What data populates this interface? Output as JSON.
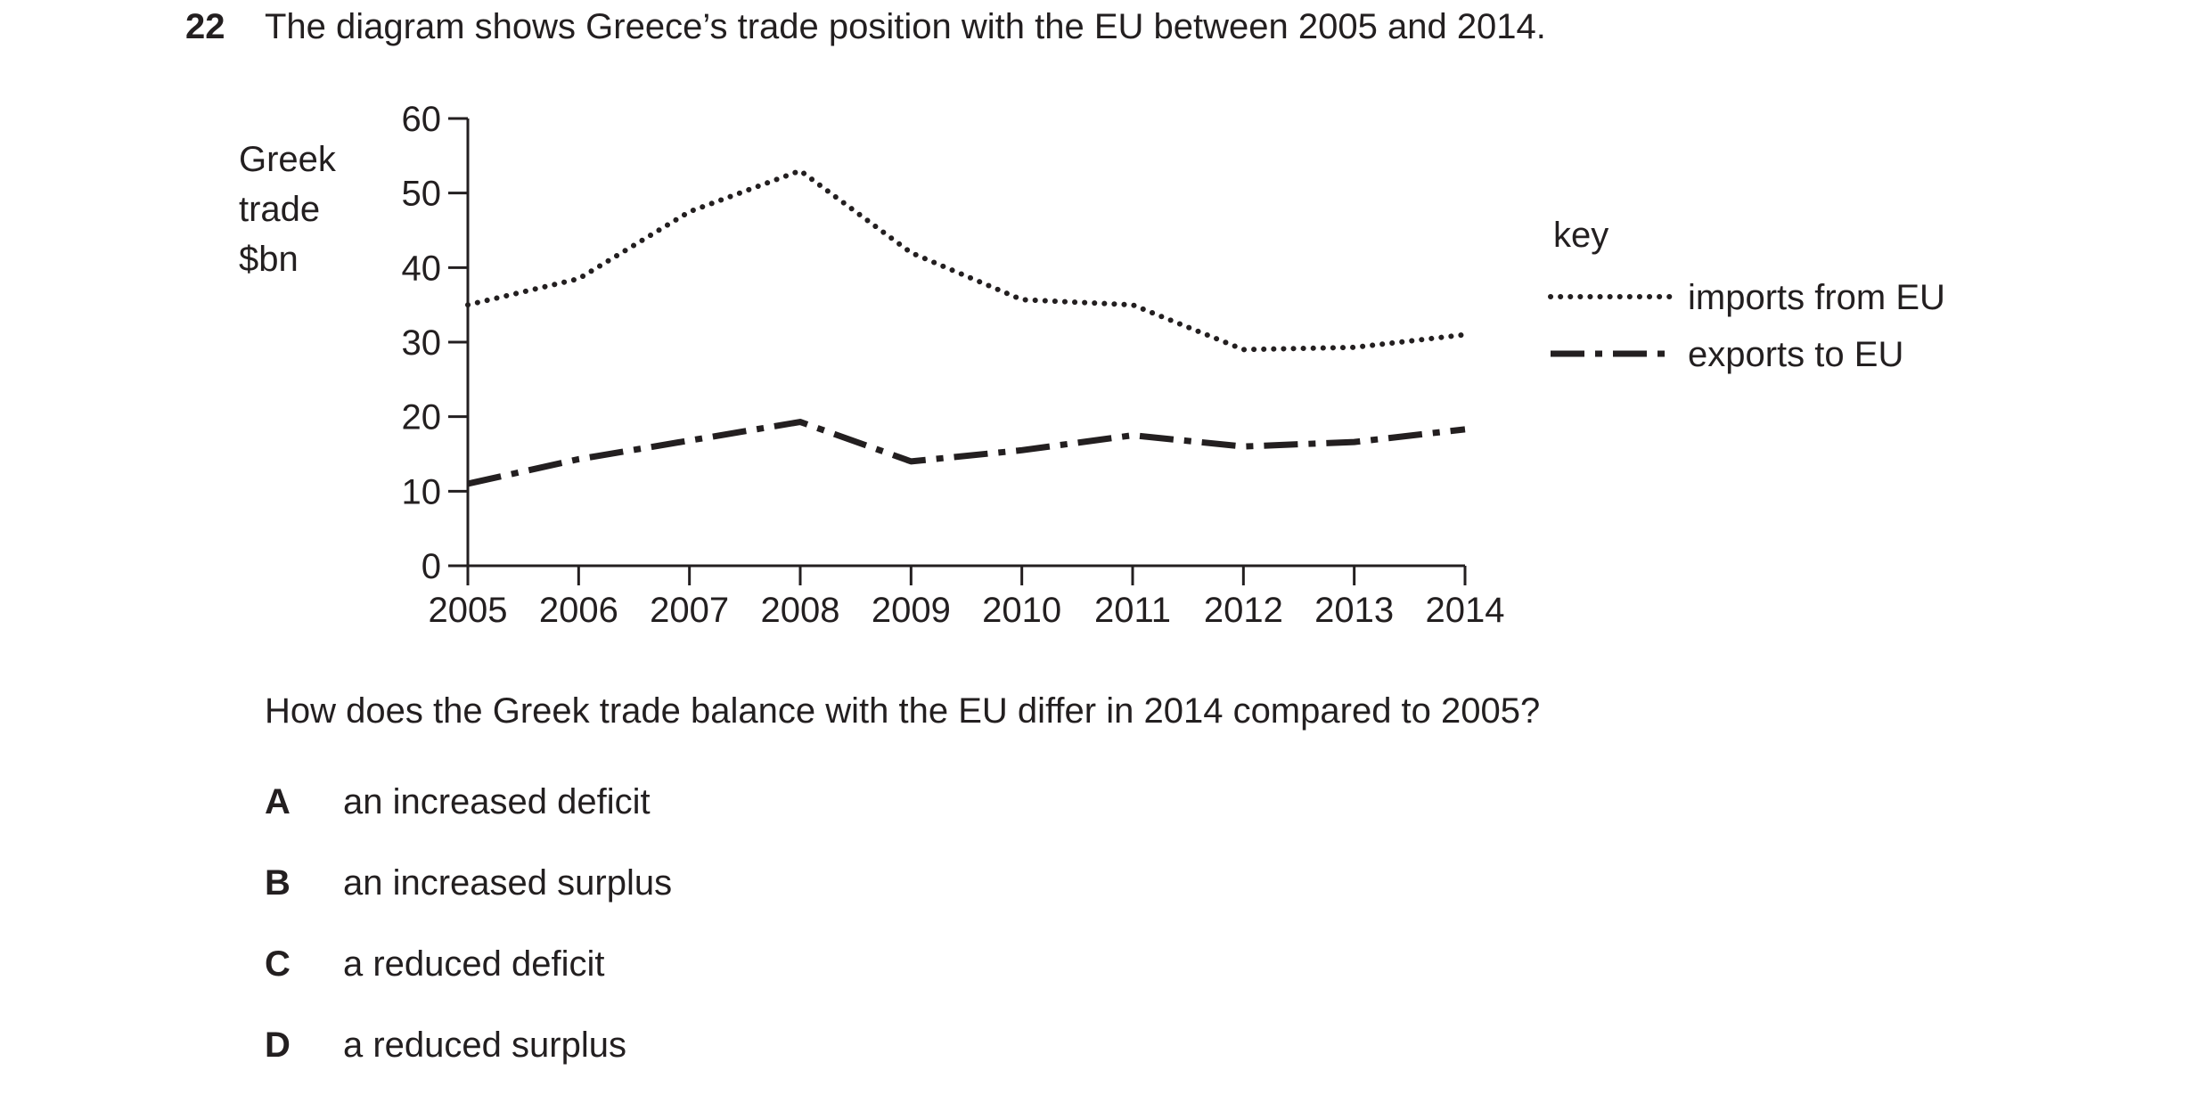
{
  "question": {
    "number": "22",
    "intro": "The diagram shows Greece’s trade position with the EU between 2005 and 2014.",
    "prompt": "How does the Greek trade balance with the EU differ in 2014 compared to 2005?",
    "options": [
      {
        "letter": "A",
        "text": "an increased deficit"
      },
      {
        "letter": "B",
        "text": "an increased surplus"
      },
      {
        "letter": "C",
        "text": "a reduced deficit"
      },
      {
        "letter": "D",
        "text": "a reduced surplus"
      }
    ]
  },
  "chart_data": {
    "type": "line",
    "ylabel_lines": [
      "Greek",
      "trade",
      "$bn"
    ],
    "ylim": [
      0,
      60
    ],
    "yticks": [
      0,
      10,
      20,
      30,
      40,
      50,
      60
    ],
    "x": [
      "2005",
      "2006",
      "2007",
      "2008",
      "2009",
      "2010",
      "2011",
      "2012",
      "2013",
      "2014"
    ],
    "legend_title": "key",
    "legend_position": "right",
    "grid": false,
    "series": [
      {
        "name": "imports from EU",
        "style": "dotted",
        "values": [
          35,
          38.5,
          47.5,
          53,
          42,
          35.7,
          35,
          29,
          29.3,
          31
        ]
      },
      {
        "name": "exports to EU",
        "style": "dash-dot",
        "values": [
          11,
          14.3,
          16.8,
          19.3,
          14,
          15.5,
          17.5,
          16,
          16.6,
          18.3
        ]
      }
    ],
    "line_color": "#231f20"
  }
}
